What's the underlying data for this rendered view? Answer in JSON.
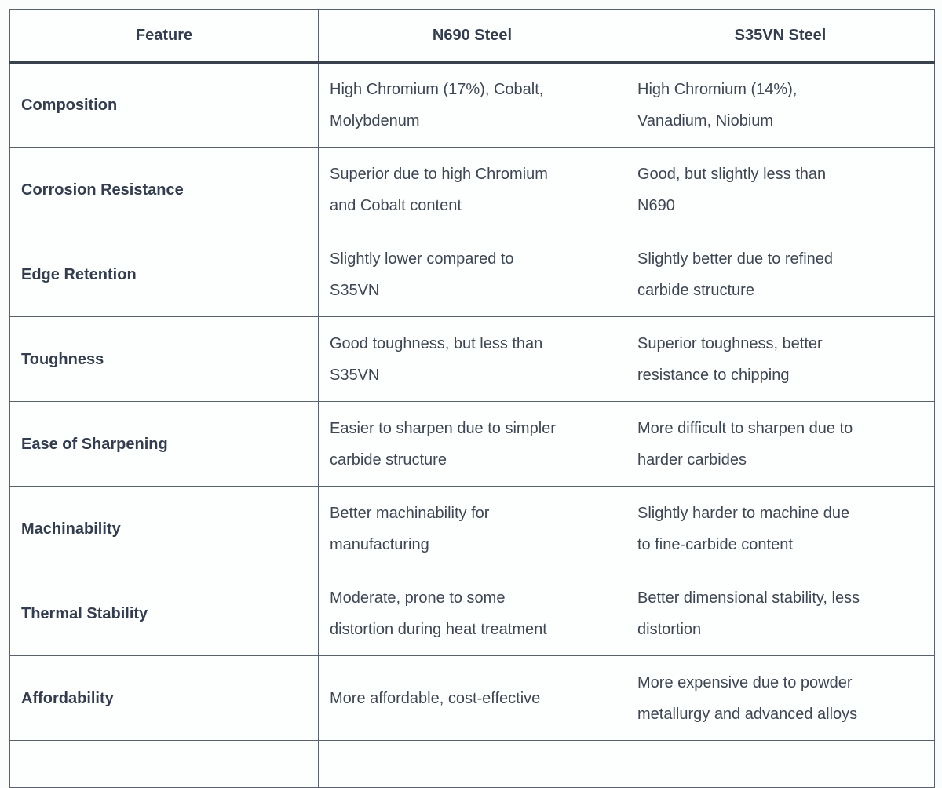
{
  "table": {
    "headers": {
      "feature": "Feature",
      "n690": "N690 Steel",
      "s35vn": "S35VN Steel"
    },
    "rows": [
      {
        "feature": "Composition",
        "n690": "High Chromium (17%), Cobalt,\nMolybdenum",
        "s35vn": "High Chromium (14%),\nVanadium, Niobium"
      },
      {
        "feature": "Corrosion Resistance",
        "n690": "Superior due to high Chromium\nand Cobalt content",
        "s35vn": "Good, but slightly less than\nN690"
      },
      {
        "feature": "Edge Retention",
        "n690": "Slightly lower compared to\nS35VN",
        "s35vn": "Slightly better due to refined\ncarbide structure"
      },
      {
        "feature": "Toughness",
        "n690": "Good toughness, but less than\nS35VN",
        "s35vn": "Superior toughness, better\nresistance to chipping"
      },
      {
        "feature": "Ease of Sharpening",
        "n690": "Easier to sharpen due to simpler\ncarbide structure",
        "s35vn": "More difficult to sharpen due to\nharder carbides"
      },
      {
        "feature": "Machinability",
        "n690": "Better machinability for\nmanufacturing",
        "s35vn": "Slightly harder to machine due\nto fine-carbide content"
      },
      {
        "feature": "Thermal Stability",
        "n690": "Moderate, prone to some\ndistortion during heat treatment",
        "s35vn": "Better dimensional stability, less\ndistortion"
      },
      {
        "feature": "Affordability",
        "n690": "More affordable, cost-effective",
        "s35vn": "More expensive due to powder\nmetallurgy and advanced alloys"
      }
    ]
  },
  "colors": {
    "text": "#3e4653",
    "heading_text": "#333d4d",
    "border": "#59616f",
    "header_bottom_border": "#3a4250",
    "cell_background": "#fdfefe",
    "page_background": "#fbfcfc"
  }
}
